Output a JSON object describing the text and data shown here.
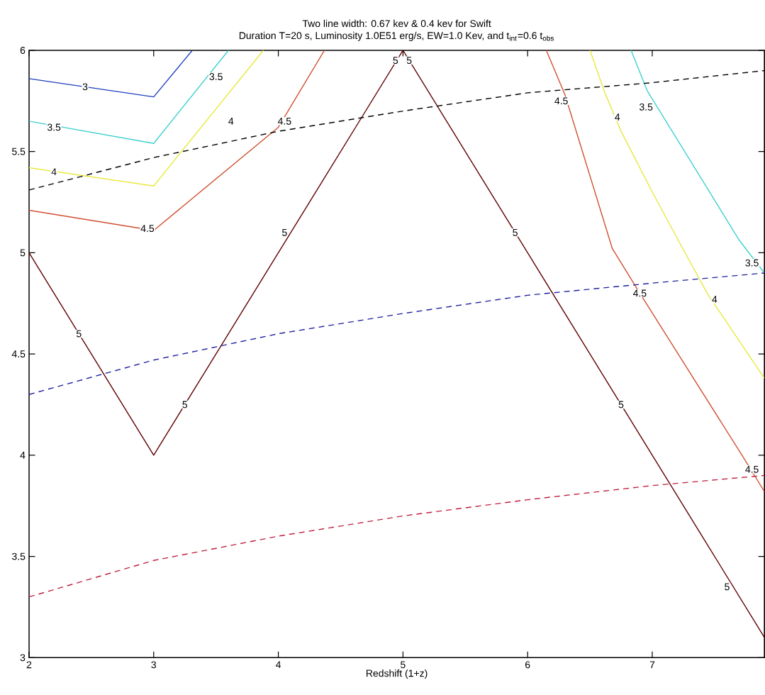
{
  "chart_data": {
    "type": "line",
    "title": "Two line width: 0.67 kev & 0.4 kev for Swift",
    "subtitle": "Duration T=20 s, Luminosity 1.0E51 erg/s, EW=1.0 Kev, and t$_{int}$=0.6 t$_{obs}$",
    "xlabel": "Redshift (1+z)",
    "xlim": [
      2,
      7.9
    ],
    "xticks": [
      2,
      3,
      4,
      5,
      6,
      7
    ],
    "ylim": [
      3,
      6
    ],
    "yticks": [
      3,
      3.5,
      4,
      4.5,
      5,
      5.5,
      6
    ],
    "marker": "none",
    "line_style": "solid",
    "series": [
      {
        "color": "#2040c0",
        "x": [
          2,
          3,
          3.31
        ],
        "values": [
          5.86,
          5.77,
          6
        ]
      },
      {
        "color": "#40d0d0",
        "x": [
          2,
          3,
          3.6
        ],
        "values": [
          5.65,
          5.54,
          6
        ]
      },
      {
        "color": "#e8e840",
        "x": [
          2,
          3,
          3.88
        ],
        "values": [
          5.42,
          5.33,
          6
        ]
      },
      {
        "color": "#d05030",
        "x": [
          2,
          3,
          4,
          4.37
        ],
        "values": [
          5.21,
          5.11,
          5.62,
          6
        ]
      },
      {
        "color": "#600000",
        "x": [
          2,
          3,
          5,
          6,
          7,
          7.9
        ],
        "values": [
          5.0,
          4.0,
          6.0,
          5.0,
          4.0,
          3.1
        ]
      },
      {
        "color": "#d05030",
        "x": [
          6.15,
          6.3,
          6.68,
          6.9,
          7.72,
          7.9
        ],
        "values": [
          6,
          5.78,
          5.02,
          4.8,
          4.0,
          3.82
        ]
      },
      {
        "color": "#e8e840",
        "x": [
          6.5,
          6.62,
          6.75,
          7.0,
          7.21,
          7.45,
          7.9
        ],
        "values": [
          6,
          5.79,
          5.6,
          5.3,
          5.06,
          4.79,
          4.38
        ]
      },
      {
        "color": "#40d0d0",
        "x": [
          6.83,
          6.96,
          7.7,
          7.9
        ],
        "values": [
          6,
          5.8,
          5.06,
          4.9
        ]
      },
      {
        "color": "#000000",
        "line_style": "dashed",
        "x": [
          2,
          3,
          4,
          5,
          6,
          7,
          7.9
        ],
        "values": [
          5.31,
          5.47,
          5.6,
          5.7,
          5.79,
          5.84,
          5.9
        ]
      },
      {
        "color": "#2020a0",
        "line_style": "dashed",
        "x": [
          2,
          3,
          4,
          5,
          6,
          7,
          7.9
        ],
        "values": [
          4.3,
          4.47,
          4.6,
          4.7,
          4.79,
          4.85,
          4.9
        ]
      },
      {
        "color": "#c02040",
        "line_style": "dashed",
        "x": [
          2,
          3,
          4,
          5,
          6,
          7,
          7.9
        ],
        "values": [
          3.3,
          3.48,
          3.6,
          3.7,
          3.78,
          3.85,
          3.9
        ]
      }
    ],
    "annotations": [
      {
        "text": "3",
        "x": 2.45,
        "y": 5.82
      },
      {
        "text": "3.5",
        "x": 2.2,
        "y": 5.62
      },
      {
        "text": "3.5",
        "x": 3.5,
        "y": 5.87
      },
      {
        "text": "4",
        "x": 2.2,
        "y": 5.4
      },
      {
        "text": "4",
        "x": 3.62,
        "y": 5.65
      },
      {
        "text": "4.5",
        "x": 2.95,
        "y": 5.12
      },
      {
        "text": "4.5",
        "x": 4.05,
        "y": 5.65
      },
      {
        "text": "5",
        "x": 4.05,
        "y": 5.1
      },
      {
        "text": "5",
        "x": 2.4,
        "y": 4.6
      },
      {
        "text": "5",
        "x": 3.25,
        "y": 4.25
      },
      {
        "text": "5",
        "x": 4.94,
        "y": 5.95
      },
      {
        "text": "5",
        "x": 5.05,
        "y": 5.95
      },
      {
        "text": "5",
        "x": 5.9,
        "y": 5.1
      },
      {
        "text": "5",
        "x": 6.75,
        "y": 4.25
      },
      {
        "text": "5",
        "x": 7.6,
        "y": 3.35
      },
      {
        "text": "4.5",
        "x": 6.27,
        "y": 5.75
      },
      {
        "text": "4",
        "x": 6.72,
        "y": 5.67
      },
      {
        "text": "3.5",
        "x": 6.95,
        "y": 5.72
      },
      {
        "text": "4.5",
        "x": 6.9,
        "y": 4.8
      },
      {
        "text": "4",
        "x": 7.5,
        "y": 4.77
      },
      {
        "text": "3.5",
        "x": 7.8,
        "y": 4.95
      },
      {
        "text": "4.5",
        "x": 7.8,
        "y": 3.93
      }
    ]
  }
}
